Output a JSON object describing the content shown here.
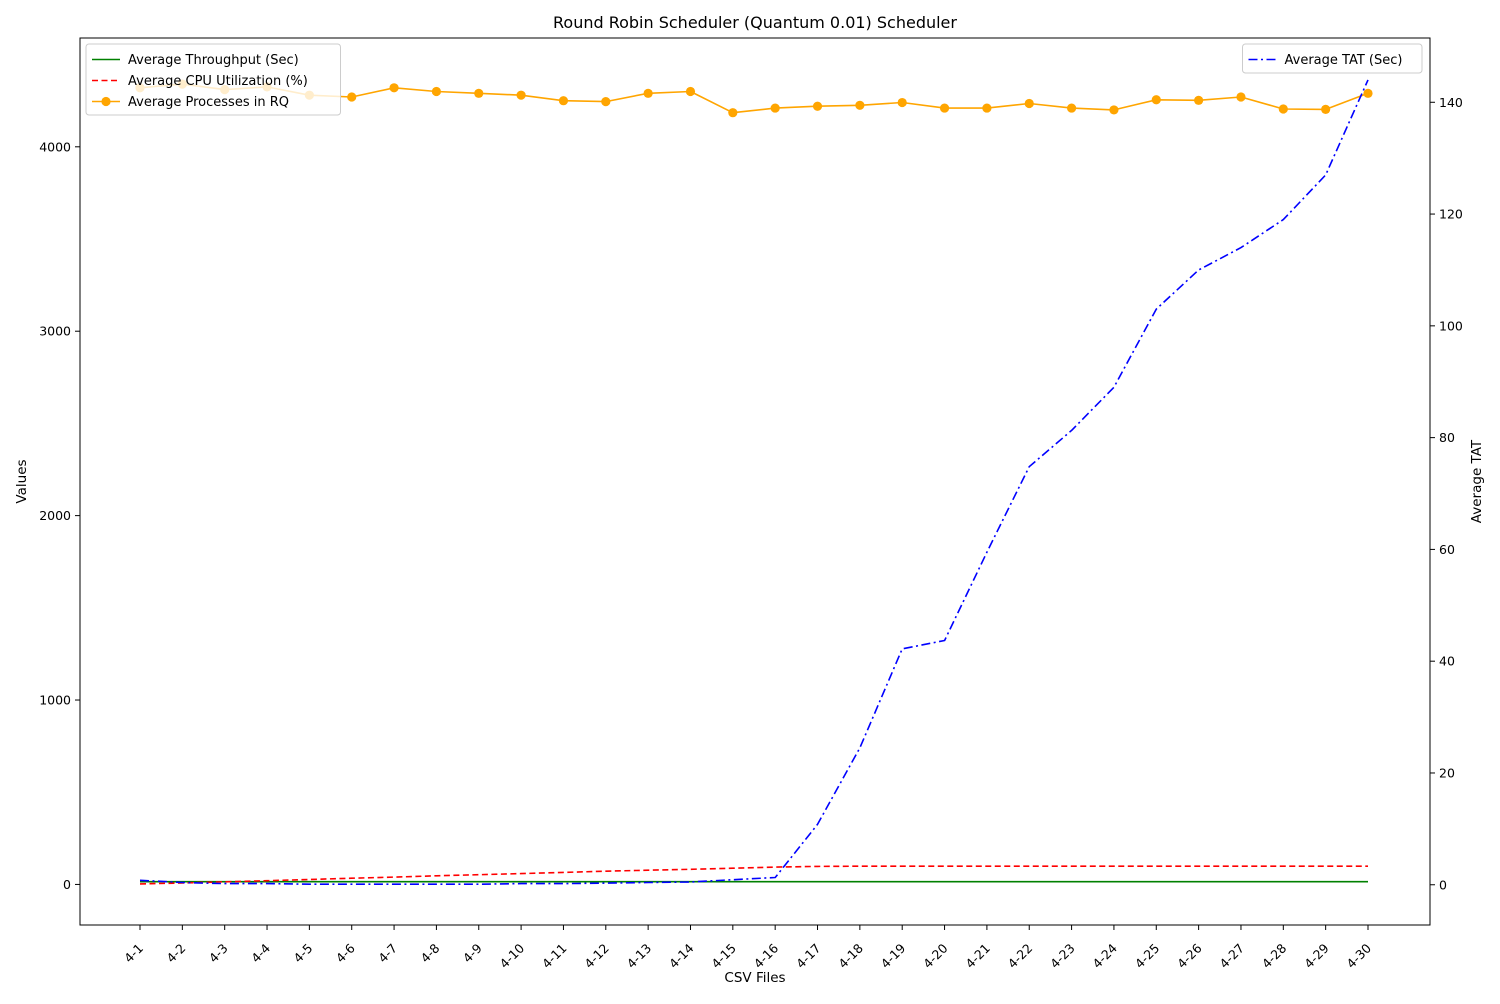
{
  "chart_data": {
    "type": "line",
    "title": "Round Robin Scheduler (Quantum 0.01) Scheduler",
    "xlabel": "CSV Files",
    "ylabel": "Values",
    "y2label": "Average TAT",
    "categories": [
      "4-1",
      "4-2",
      "4-3",
      "4-4",
      "4-5",
      "4-6",
      "4-7",
      "4-8",
      "4-9",
      "4-10",
      "4-11",
      "4-12",
      "4-13",
      "4-14",
      "4-15",
      "4-16",
      "4-17",
      "4-18",
      "4-19",
      "4-20",
      "4-21",
      "4-22",
      "4-23",
      "4-24",
      "4-25",
      "4-26",
      "4-27",
      "4-28",
      "4-29",
      "4-30"
    ],
    "ylim": [
      -220,
      4590
    ],
    "yticks": [
      0,
      1000,
      2000,
      3000,
      4000
    ],
    "y2lim": [
      -7.2,
      151.5
    ],
    "y2ticks": [
      0,
      20,
      40,
      60,
      80,
      100,
      120,
      140
    ],
    "grid": false,
    "legend_left_position": "upper-left",
    "legend_right_position": "upper-right",
    "series": [
      {
        "name": "Average Throughput (Sec)",
        "axis": "left",
        "color": "#008000",
        "style": "solid",
        "values": [
          15,
          15,
          15,
          15,
          15,
          15,
          15,
          15,
          15,
          15,
          15,
          15,
          15,
          15,
          15,
          15,
          15,
          15,
          15,
          15,
          15,
          15,
          15,
          15,
          15,
          15,
          15,
          15,
          15,
          15
        ]
      },
      {
        "name": "Average CPU Utilization (%)",
        "axis": "left",
        "color": "#ff0000",
        "style": "dashed",
        "values": [
          3,
          8,
          14,
          20,
          27,
          34,
          40,
          47,
          53,
          59,
          65,
          72,
          77,
          82,
          88,
          94,
          98,
          99,
          99,
          99,
          99,
          99,
          99,
          99,
          99,
          99,
          99,
          99,
          99,
          99
        ]
      },
      {
        "name": "Average Processes in RQ",
        "axis": "left",
        "color": "#ffa500",
        "style": "solid-marker",
        "values": [
          4320,
          4340,
          4310,
          4325,
          4280,
          4270,
          4320,
          4300,
          4290,
          4280,
          4250,
          4245,
          4290,
          4300,
          4185,
          4210,
          4220,
          4225,
          4240,
          4210,
          4210,
          4235,
          4210,
          4200,
          4255,
          4252,
          4270,
          4205,
          4203,
          4290
        ]
      },
      {
        "name": "Average TAT (Sec)",
        "axis": "right",
        "color": "#0000ff",
        "style": "dashdot",
        "values": [
          0.8,
          0.4,
          0.2,
          0.2,
          0.1,
          0.1,
          0.1,
          0.1,
          0.1,
          0.2,
          0.2,
          0.3,
          0.4,
          0.5,
          0.9,
          1.3,
          10.8,
          24.5,
          42.2,
          43.7,
          59.5,
          74.8,
          81.3,
          89,
          103,
          110,
          114,
          119,
          127,
          144
        ]
      }
    ]
  }
}
